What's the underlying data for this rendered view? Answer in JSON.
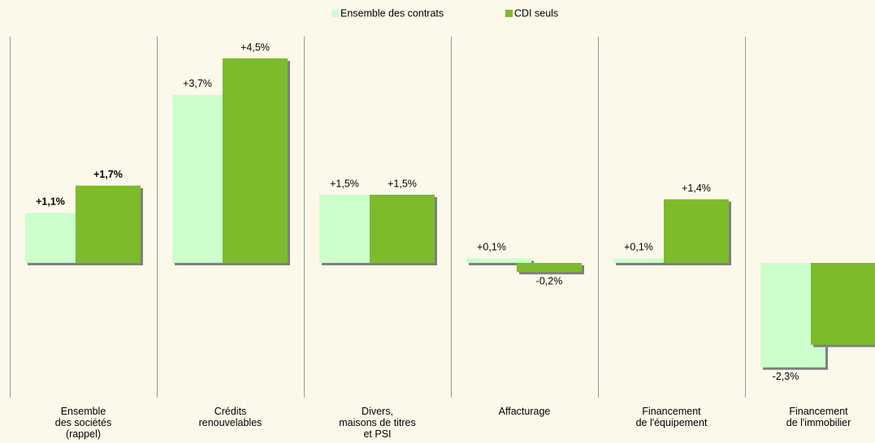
{
  "chart_data": {
    "type": "bar",
    "categories": [
      "Ensemble\ndes sociétés\n(rappel)",
      "Crédits\nrenouvelables",
      "Divers,\nmaisons de titres\net PSI",
      "Affacturage",
      "Financement\nde l'équipement",
      "Financement\nde l'immobilier"
    ],
    "series": [
      {
        "name": "Ensemble des contrats",
        "color": "#ccffcc",
        "values": [
          1.1,
          3.7,
          1.5,
          0.1,
          0.1,
          -2.3
        ],
        "value_labels": [
          "+1,1%",
          "+3,7%",
          "+1,5%",
          "+0,1%",
          "+0,1%",
          "-2,3%"
        ]
      },
      {
        "name": "CDI seuls",
        "color": "#7dbb2a",
        "values": [
          1.7,
          4.5,
          1.5,
          -0.2,
          1.4,
          -1.8
        ],
        "value_labels": [
          "+1,7%",
          "+4,5%",
          "+1,5%",
          "-0,2%",
          "+1,4%",
          null
        ]
      }
    ],
    "ylim": [
      -2.5,
      4.8
    ],
    "legend": "top"
  }
}
